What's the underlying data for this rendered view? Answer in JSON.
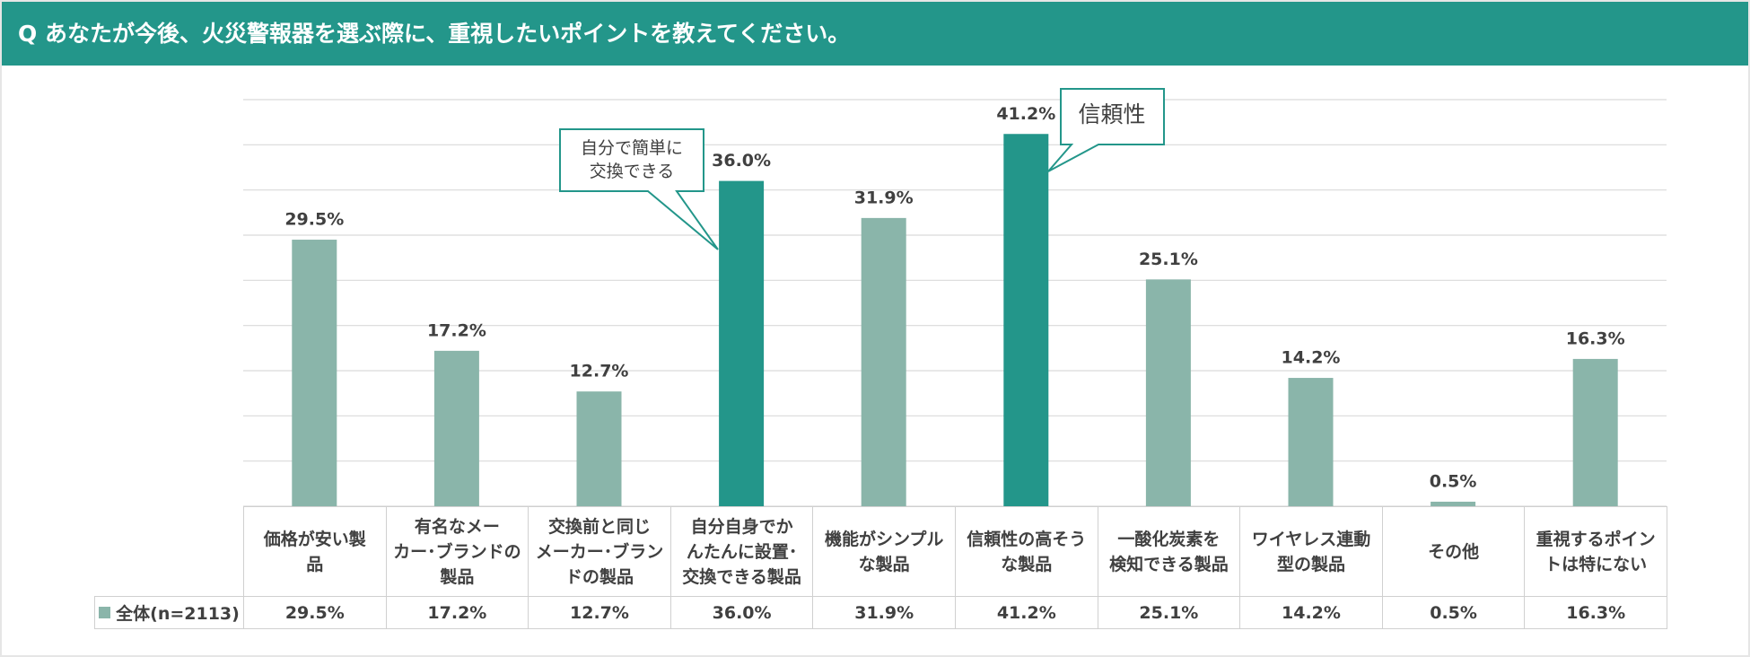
{
  "chart_data": {
    "type": "bar",
    "title": "Q あなたが今後、火災警報器を選ぶ際に、重視したいポイントを教えてください。",
    "categories": [
      "価格が安い製\n品",
      "有名なメー\nカー･ブランドの\n製品",
      "交換前と同じ\nメーカー･ブラン\nドの製品",
      "自分自身でか\nんたんに設置･\n交換できる製品",
      "機能がシンプル\nな製品",
      "信頼性の高そう\nな製品",
      "一酸化炭素を\n検知できる製品",
      "ワイヤレス連動\n型の製品",
      "その他",
      "重視するポイン\nトは特にない"
    ],
    "series": [
      {
        "name": "全体(n=2113)",
        "color": "#8ab5aa",
        "values": [
          29.5,
          17.2,
          12.7,
          36.0,
          31.9,
          41.2,
          25.1,
          14.2,
          0.5,
          16.3
        ],
        "value_labels": [
          "29.5%",
          "17.2%",
          "12.7%",
          "36.0%",
          "31.9%",
          "41.2%",
          "25.1%",
          "14.2%",
          "0.5%",
          "16.3%"
        ],
        "colors": [
          "#8ab5aa",
          "#8ab5aa",
          "#8ab5aa",
          "#23968a",
          "#8ab5aa",
          "#23968a",
          "#8ab5aa",
          "#8ab5aa",
          "#8ab5aa",
          "#8ab5aa"
        ]
      }
    ],
    "ylim": [
      0,
      45
    ],
    "yticks": [
      0,
      5,
      10,
      15,
      20,
      25,
      30,
      35,
      40,
      45
    ],
    "grid": true,
    "annotations": [
      {
        "text": "自分で簡単に\n交換できる"
      },
      {
        "text": "信頼性"
      }
    ]
  }
}
